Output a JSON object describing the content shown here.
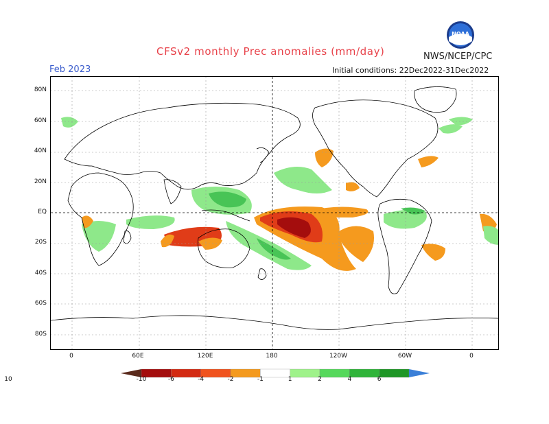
{
  "title": "CFSv2 monthly Prec anomalies (mm/day)",
  "agency": "NWS/NCEP/CPC",
  "logo_text": "NOAA",
  "month": "Feb 2023",
  "initial_conditions": "Initial conditions: 22Dec2022-31Dec2022",
  "lat_labels": [
    "80N",
    "60N",
    "40N",
    "20N",
    "EQ",
    "20S",
    "40S",
    "60S",
    "80S"
  ],
  "lon_labels": [
    "0",
    "60E",
    "120E",
    "180",
    "120W",
    "60W",
    "0"
  ],
  "colorbar": {
    "labels": [
      "-10",
      "-6",
      "-4",
      "-2",
      "-1",
      "1",
      "2",
      "4",
      "6",
      "10"
    ],
    "colors": [
      "#5a2a1c",
      "#a40d0d",
      "#d32a12",
      "#f0531e",
      "#f49a1e",
      "#ffffff",
      "#9ff28a",
      "#56d85c",
      "#30b43a",
      "#1e9626",
      "#3a7fd8"
    ]
  },
  "colors": {
    "dry_strong": "#a40d0d",
    "dry_mid": "#e03c18",
    "dry_weak": "#f59a1e",
    "wet_weak": "#8ee88a",
    "wet_mid": "#48c456",
    "wet_strong": "#1e8a2a"
  }
}
